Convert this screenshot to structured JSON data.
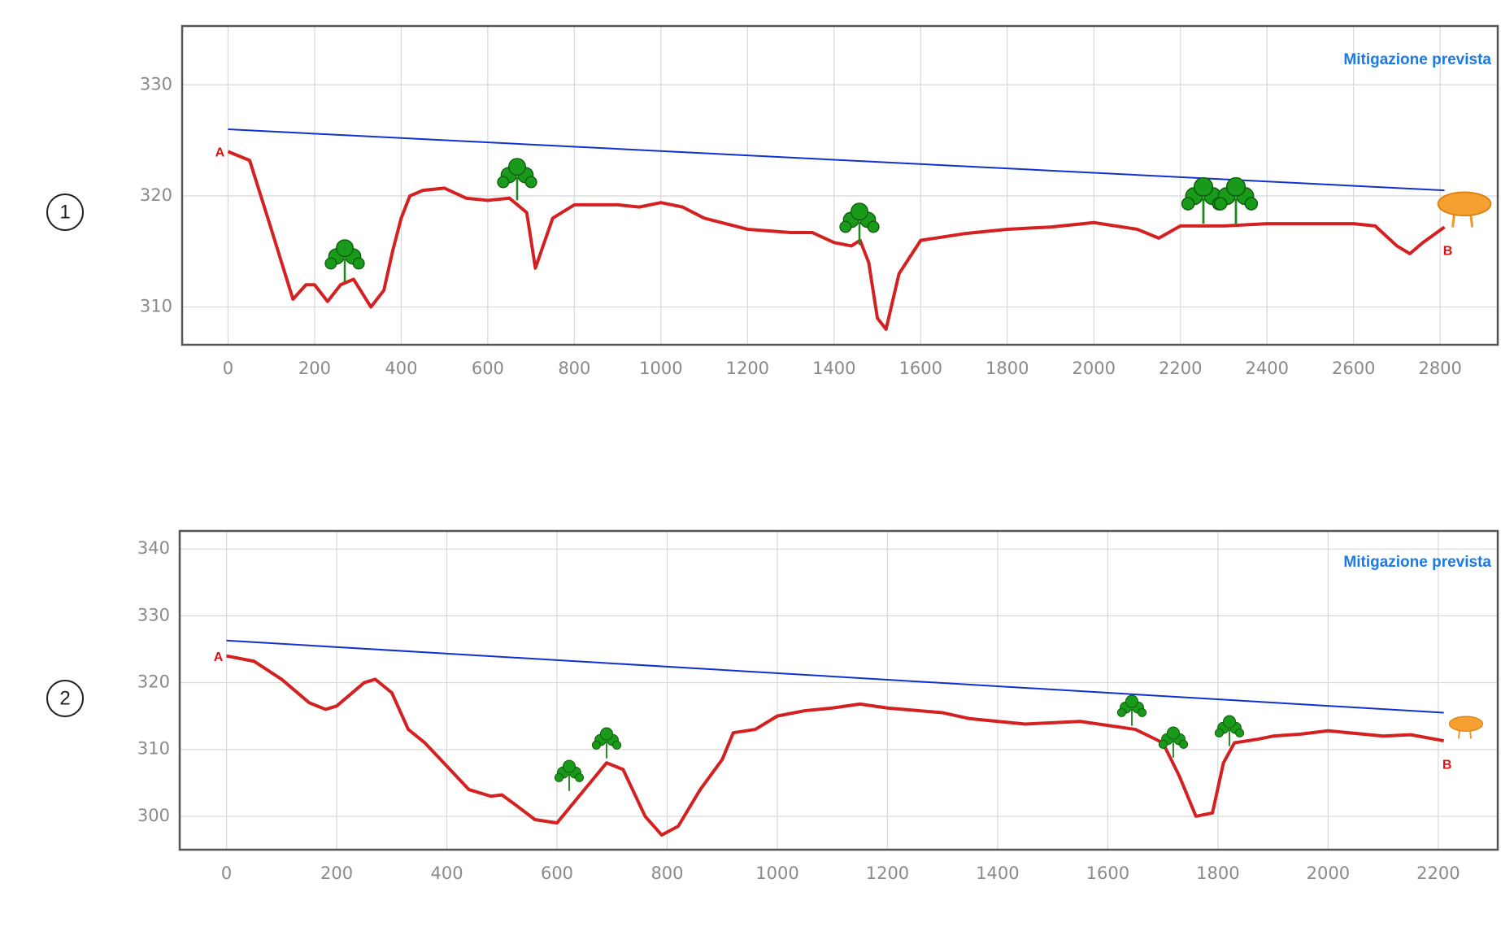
{
  "chart_data": [
    {
      "type": "line",
      "panel_label": "1",
      "annotation": "Mitigazione prevista",
      "start_label": "A",
      "end_label": "B",
      "xlim": [
        -106,
        2933
      ],
      "ylim": [
        306.6,
        335.3
      ],
      "xticks": [
        0,
        200,
        400,
        600,
        800,
        1000,
        1200,
        1400,
        1600,
        1800,
        2000,
        2200,
        2400,
        2600,
        2800
      ],
      "yticks": [
        310,
        320,
        330
      ],
      "grid": true,
      "series": [
        {
          "color": "#d42020",
          "x": [
            0,
            50,
            100,
            150,
            180,
            200,
            230,
            260,
            290,
            330,
            360,
            380,
            400,
            420,
            450,
            500,
            550,
            600,
            650,
            690,
            710,
            750,
            800,
            900,
            950,
            1000,
            1050,
            1100,
            1200,
            1300,
            1350,
            1400,
            1440,
            1460,
            1480,
            1500,
            1520,
            1550,
            1600,
            1700,
            1800,
            1900,
            2000,
            2100,
            2150,
            2200,
            2300,
            2400,
            2500,
            2600,
            2650,
            2700,
            2730,
            2760,
            2810
          ],
          "values": [
            324,
            323.2,
            317,
            310.7,
            312,
            312,
            310.5,
            312,
            312.5,
            310,
            311.5,
            315,
            318,
            320,
            320.5,
            320.7,
            319.8,
            319.6,
            319.8,
            318.5,
            313.5,
            318,
            319.2,
            319.2,
            319,
            319.4,
            319,
            318,
            317,
            316.7,
            316.7,
            315.8,
            315.5,
            316,
            314,
            309,
            308,
            313,
            316,
            316.6,
            317,
            317.2,
            317.6,
            317,
            316.2,
            317.3,
            317.3,
            317.5,
            317.5,
            317.5,
            317.3,
            315.5,
            314.8,
            315.8,
            317.2
          ]
        },
        {
          "color": "#1030d0",
          "x": [
            0,
            2810
          ],
          "values": [
            326,
            320.5
          ]
        }
      ]
    },
    {
      "type": "line",
      "panel_label": "2",
      "annotation": "Mitigazione prevista",
      "start_label": "A",
      "end_label": "B",
      "xlim": [
        -85,
        2308
      ],
      "ylim": [
        295,
        342.7
      ],
      "xticks": [
        0,
        200,
        400,
        600,
        800,
        1000,
        1200,
        1400,
        1600,
        1800,
        2000,
        2200
      ],
      "yticks": [
        300,
        310,
        320,
        330,
        340
      ],
      "grid": true,
      "series": [
        {
          "color": "#d42020",
          "x": [
            0,
            50,
            100,
            150,
            180,
            200,
            250,
            270,
            300,
            330,
            360,
            400,
            440,
            480,
            500,
            520,
            560,
            600,
            620,
            650,
            690,
            720,
            760,
            790,
            820,
            860,
            900,
            920,
            960,
            1000,
            1050,
            1100,
            1150,
            1200,
            1300,
            1350,
            1450,
            1550,
            1650,
            1700,
            1730,
            1760,
            1790,
            1810,
            1830,
            1870,
            1900,
            1950,
            2000,
            2100,
            2150,
            2210
          ],
          "values": [
            324,
            323.2,
            320.5,
            317,
            316,
            316.5,
            320,
            320.5,
            318.5,
            313,
            311,
            307.5,
            304,
            303,
            303.2,
            302,
            299.5,
            299,
            301,
            304,
            308,
            307,
            300,
            297.2,
            298.5,
            304,
            308.5,
            312.5,
            313,
            315,
            315.8,
            316.2,
            316.8,
            316.2,
            315.5,
            314.6,
            313.8,
            314.2,
            313,
            311,
            306,
            300,
            300.5,
            308,
            311,
            311.5,
            312,
            312.3,
            312.8,
            312,
            312.2,
            311.3
          ]
        },
        {
          "color": "#1030d0",
          "x": [
            0,
            2210
          ],
          "values": [
            326.3,
            315.5
          ]
        }
      ]
    }
  ]
}
